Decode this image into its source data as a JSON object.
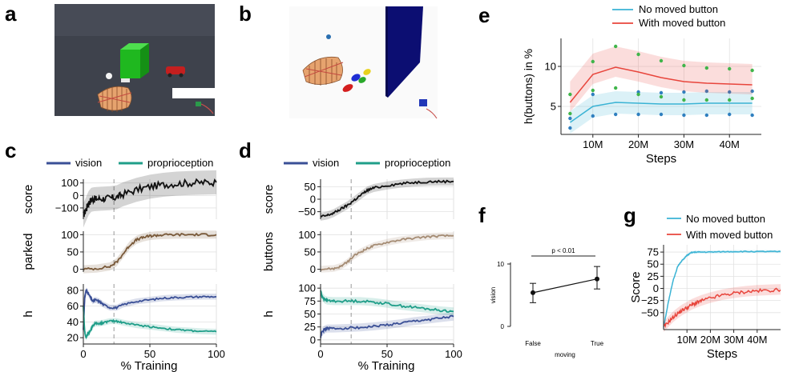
{
  "figure": {
    "panel_labels": [
      "a",
      "b",
      "c",
      "d",
      "e",
      "f",
      "g"
    ]
  },
  "colors": {
    "vision": "#3a4f96",
    "proprioception": "#1f9e89",
    "parked": "#7a5a3a",
    "buttons": "#a58c74",
    "score": "#111111",
    "no_moved": "#3ab3d4",
    "with_moved": "#e8453c",
    "dot_green": "#3fb54a",
    "dot_blue": "#2f7fbf",
    "grid": "#e2e2e2"
  },
  "panel_c": {
    "legend": [
      "vision",
      "proprioception"
    ],
    "xlabel": "% Training",
    "vline_at": 23
  },
  "panel_d": {
    "legend": [
      "vision",
      "proprioception"
    ],
    "xlabel": "% Training",
    "vline_at": 23
  },
  "panel_f": {
    "annotation": "p < 0.01"
  },
  "chart_data": [
    {
      "id": "c-score",
      "type": "line",
      "panel": "c",
      "ylabel": "score",
      "xlim": [
        0,
        100
      ],
      "ylim": [
        -190,
        130
      ],
      "yticks": [
        100,
        0,
        -100
      ],
      "ytick_labels": [
        "100",
        "0",
        "−100"
      ],
      "x": [
        0,
        2,
        4,
        6,
        8,
        10,
        15,
        20,
        25,
        30,
        40,
        50,
        60,
        70,
        80,
        90,
        100
      ],
      "series": [
        {
          "name": "score",
          "values": [
            -160,
            -110,
            -60,
            -35,
            -30,
            -28,
            -25,
            -22,
            -15,
            10,
            45,
            70,
            85,
            95,
            100,
            103,
            105
          ]
        }
      ]
    },
    {
      "id": "c-parked",
      "type": "line",
      "panel": "c",
      "ylabel": "parked",
      "xlim": [
        0,
        100
      ],
      "ylim": [
        -8,
        110
      ],
      "yticks": [
        0,
        50,
        100
      ],
      "ytick_labels": [
        "0",
        "50",
        "100"
      ],
      "x": [
        0,
        10,
        20,
        25,
        30,
        35,
        40,
        45,
        50,
        55,
        60,
        70,
        80,
        90,
        100
      ],
      "series": [
        {
          "name": "parked",
          "values": [
            0,
            2,
            8,
            20,
            45,
            70,
            85,
            92,
            96,
            98,
            99,
            100,
            100,
            100,
            100
          ]
        }
      ]
    },
    {
      "id": "c-h",
      "type": "line",
      "panel": "c",
      "ylabel": "h",
      "xlim": [
        0,
        100
      ],
      "ylim": [
        12,
        88
      ],
      "xticks": [
        0,
        50,
        100
      ],
      "xtick_labels": [
        "0",
        "50",
        "100"
      ],
      "yticks": [
        20,
        40,
        60,
        80
      ],
      "ytick_labels": [
        "20",
        "40",
        "60",
        "80"
      ],
      "x": [
        0,
        1,
        2,
        3,
        5,
        7,
        9,
        12,
        15,
        20,
        25,
        30,
        40,
        50,
        60,
        70,
        80,
        90,
        100
      ],
      "series": [
        {
          "name": "vision",
          "values": [
            30,
            70,
            80,
            78,
            72,
            66,
            68,
            66,
            62,
            58,
            58,
            62,
            66,
            68,
            70,
            71,
            71.5,
            72,
            72
          ]
        },
        {
          "name": "proprioception",
          "values": [
            60,
            28,
            20,
            24,
            28,
            35,
            38,
            38,
            39,
            41,
            41,
            39,
            36,
            34,
            32,
            30,
            29,
            28,
            27.5
          ]
        }
      ]
    },
    {
      "id": "d-score",
      "type": "line",
      "panel": "d",
      "ylabel": "score",
      "xlim": [
        0,
        100
      ],
      "ylim": [
        -80,
        80
      ],
      "yticks": [
        50,
        0,
        -50
      ],
      "ytick_labels": [
        "50",
        "0",
        "−50"
      ],
      "x": [
        0,
        5,
        10,
        15,
        20,
        25,
        30,
        35,
        40,
        50,
        60,
        70,
        80,
        90,
        100
      ],
      "series": [
        {
          "name": "score",
          "values": [
            -70,
            -65,
            -55,
            -40,
            -25,
            -5,
            15,
            35,
            45,
            55,
            62,
            67,
            70,
            71,
            71
          ]
        }
      ]
    },
    {
      "id": "d-buttons",
      "type": "line",
      "panel": "d",
      "ylabel": "buttons",
      "xlim": [
        0,
        100
      ],
      "ylim": [
        -8,
        110
      ],
      "yticks": [
        0,
        50,
        100
      ],
      "ytick_labels": [
        "0",
        "50",
        "100"
      ],
      "x": [
        0,
        10,
        15,
        20,
        25,
        30,
        35,
        40,
        50,
        60,
        70,
        80,
        90,
        100
      ],
      "series": [
        {
          "name": "buttons",
          "values": [
            0,
            2,
            8,
            20,
            38,
            50,
            60,
            68,
            78,
            85,
            90,
            94,
            96,
            97
          ]
        }
      ]
    },
    {
      "id": "d-h",
      "type": "line",
      "panel": "d",
      "ylabel": "h",
      "xlim": [
        0,
        100
      ],
      "ylim": [
        -8,
        108
      ],
      "xticks": [
        0,
        50,
        100
      ],
      "xtick_labels": [
        "0",
        "50",
        "100"
      ],
      "yticks": [
        0,
        25,
        50,
        75,
        100
      ],
      "ytick_labels": [
        "0",
        "25",
        "50",
        "75",
        "100"
      ],
      "x": [
        0,
        1,
        3,
        5,
        10,
        20,
        30,
        40,
        50,
        60,
        70,
        80,
        90,
        100
      ],
      "series": [
        {
          "name": "vision",
          "values": [
            5,
            15,
            20,
            22,
            22,
            23,
            24,
            26,
            29,
            32,
            36,
            39,
            42,
            45
          ]
        },
        {
          "name": "proprioception",
          "values": [
            95,
            85,
            78,
            76,
            75,
            75,
            75,
            73,
            70,
            66,
            63,
            60,
            57,
            55
          ]
        }
      ]
    },
    {
      "id": "e",
      "type": "line",
      "panel": "e",
      "ylabel": "h(buttons) in %",
      "xlabel": "Steps",
      "xlim": [
        3,
        47
      ],
      "ylim": [
        1.5,
        13.5
      ],
      "xticks": [
        10,
        20,
        30,
        40
      ],
      "xtick_labels": [
        "10M",
        "20M",
        "30M",
        "40M"
      ],
      "yticks": [
        5,
        10
      ],
      "ytick_labels": [
        "5",
        "10"
      ],
      "x": [
        5,
        10,
        15,
        20,
        25,
        30,
        35,
        40,
        45
      ],
      "series": [
        {
          "name": "No moved button",
          "values": [
            3.0,
            5.0,
            5.5,
            5.4,
            5.3,
            5.3,
            5.4,
            5.4,
            5.4
          ],
          "points": [
            [
              5,
              2.3
            ],
            [
              5,
              3.5
            ],
            [
              10,
              3.8
            ],
            [
              10,
              6.5
            ],
            [
              15,
              4.0
            ],
            [
              20,
              4.0
            ],
            [
              20,
              6.8
            ],
            [
              25,
              4.0
            ],
            [
              25,
              6.7
            ],
            [
              30,
              3.9
            ],
            [
              30,
              6.8
            ],
            [
              35,
              3.9
            ],
            [
              35,
              6.9
            ],
            [
              40,
              4.0
            ],
            [
              40,
              6.8
            ],
            [
              45,
              3.9
            ],
            [
              45,
              6.9
            ]
          ]
        },
        {
          "name": "With moved button",
          "values": [
            5.5,
            9.0,
            9.9,
            9.3,
            8.6,
            8.1,
            7.9,
            7.8,
            7.7
          ],
          "points": [
            [
              5,
              4.1
            ],
            [
              5,
              6.5
            ],
            [
              10,
              7.0
            ],
            [
              10,
              10.6
            ],
            [
              15,
              7.3
            ],
            [
              15,
              12.5
            ],
            [
              20,
              6.5
            ],
            [
              20,
              11.5
            ],
            [
              25,
              6.2
            ],
            [
              25,
              10.7
            ],
            [
              30,
              5.8
            ],
            [
              30,
              10.1
            ],
            [
              35,
              5.8
            ],
            [
              35,
              9.8
            ],
            [
              40,
              5.8
            ],
            [
              40,
              9.7
            ],
            [
              45,
              6.0
            ],
            [
              45,
              9.5
            ]
          ]
        }
      ]
    },
    {
      "id": "f",
      "type": "scatter",
      "panel": "f",
      "ylabel": "vision",
      "xlabel": "moving",
      "categories": [
        "False",
        "True"
      ],
      "ylim": [
        0,
        10
      ],
      "yticks": [
        0,
        10
      ],
      "ytick_labels": [
        "0",
        "10"
      ],
      "values": [
        5.4,
        7.6
      ],
      "errors_low": [
        1.6,
        1.6
      ],
      "errors_high": [
        1.5,
        2.0
      ]
    },
    {
      "id": "g",
      "type": "line",
      "panel": "g",
      "ylabel": "Score",
      "xlabel": "Steps",
      "xlim": [
        0,
        50
      ],
      "ylim": [
        -85,
        90
      ],
      "xticks": [
        10,
        20,
        30,
        40
      ],
      "xtick_labels": [
        "10M",
        "20M",
        "30M",
        "40M"
      ],
      "yticks": [
        -50,
        -25,
        0,
        25,
        50,
        75
      ],
      "ytick_labels": [
        "−50",
        "−25",
        "0",
        "25",
        "50",
        "75"
      ],
      "x": [
        0,
        2,
        4,
        6,
        8,
        10,
        12,
        14,
        16,
        20,
        25,
        30,
        35,
        40,
        45,
        50
      ],
      "series": [
        {
          "name": "No moved button",
          "values": [
            -80,
            -30,
            15,
            45,
            58,
            68,
            74,
            75,
            75,
            75,
            75.5,
            76,
            76,
            76,
            76,
            76
          ]
        },
        {
          "name": "With moved button",
          "values": [
            -80,
            -70,
            -60,
            -52,
            -45,
            -40,
            -34,
            -30,
            -26,
            -20,
            -14,
            -10,
            -7,
            -5,
            -4,
            -3
          ]
        }
      ]
    }
  ],
  "panel_e": {
    "legend": [
      "No moved button",
      "With moved button"
    ]
  },
  "panel_g": {
    "legend": [
      "No moved button",
      "With moved button"
    ]
  }
}
